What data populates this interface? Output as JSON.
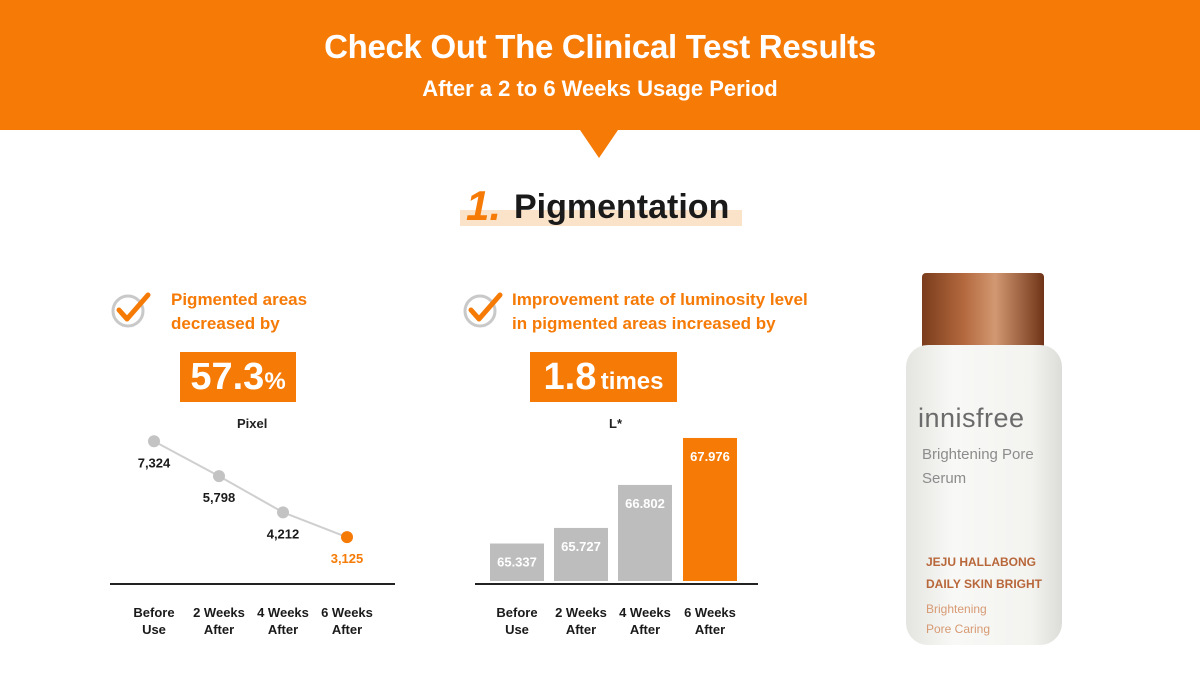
{
  "banner": {
    "title": "Check Out The Clinical Test Results",
    "subtitle": "After a 2 to 6 Weeks Usage Period"
  },
  "section": {
    "number": "1.",
    "title": "Pigmentation"
  },
  "colors": {
    "accent": "#f57a06",
    "grey_bar": "#bdbdbd",
    "grey_point": "#c3c3c3",
    "dark_text": "#222222"
  },
  "stat_left": {
    "icon": "check-circle-icon",
    "label_line1": "Pigmented areas",
    "label_line2": "decreased by",
    "big_value": "57.3",
    "big_unit": "%",
    "chart_unit": "Pixel"
  },
  "stat_right": {
    "icon": "check-circle-icon",
    "label_line1": "Improvement rate of luminosity level",
    "label_line2": "in pigmented areas increased by",
    "big_value": "1.8",
    "big_unit": "times",
    "chart_unit": "L*"
  },
  "chart_data": [
    {
      "type": "line",
      "categories": [
        "Before Use",
        "2 Weeks After",
        "4 Weeks After",
        "6 Weeks After"
      ],
      "category_lines": [
        [
          "Before",
          "Use"
        ],
        [
          "2 Weeks",
          "After"
        ],
        [
          "4 Weeks",
          "After"
        ],
        [
          "6 Weeks",
          "After"
        ]
      ],
      "values": [
        7324,
        5798,
        4212,
        3125
      ],
      "labels": [
        "7,324",
        "5,798",
        "4,212",
        "3,125"
      ],
      "highlight_index": 3,
      "ylabel": "Pixel",
      "ylim": [
        3000,
        7600
      ]
    },
    {
      "type": "bar",
      "categories": [
        "Before Use",
        "2 Weeks After",
        "4 Weeks After",
        "6 Weeks After"
      ],
      "category_lines": [
        [
          "Before",
          "Use"
        ],
        [
          "2 Weeks",
          "After"
        ],
        [
          "4 Weeks",
          "After"
        ],
        [
          "6 Weeks",
          "After"
        ]
      ],
      "values": [
        65.337,
        65.727,
        66.802,
        67.976
      ],
      "labels": [
        "65.337",
        "65.727",
        "66.802",
        "67.976"
      ],
      "highlight_index": 3,
      "ylabel": "L*",
      "ylim": [
        64.4,
        68.1
      ]
    }
  ],
  "product": {
    "brand": "innisfree",
    "name_line1": "Brightening Pore",
    "name_line2": "Serum",
    "tag_line1": "JEJU HALLABONG",
    "tag_line2": "DAILY SKIN BRIGHT",
    "desc_line1": "Brightening",
    "desc_line2": "Pore Caring"
  }
}
